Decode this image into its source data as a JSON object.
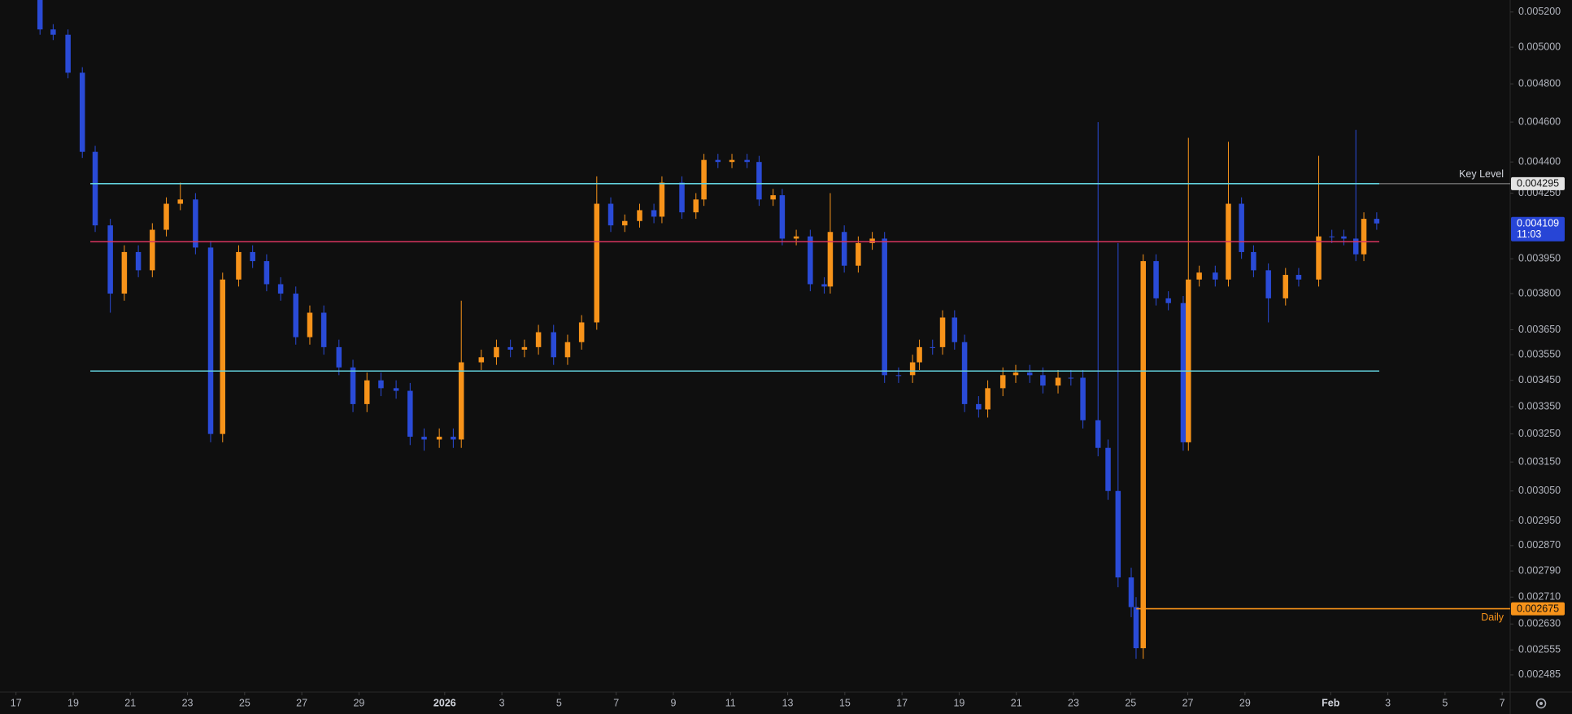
{
  "chart_data": {
    "type": "candlestick",
    "log_scale": true,
    "up_color": "#f7931a",
    "down_color": "#2a4bd7",
    "xlim": [
      -0.56,
      52.28
    ],
    "ylim": [
      0.002438,
      0.00527
    ],
    "xticks": [
      {
        "value": 0,
        "label": "17"
      },
      {
        "value": 2,
        "label": "19"
      },
      {
        "value": 4,
        "label": "21"
      },
      {
        "value": 6,
        "label": "23"
      },
      {
        "value": 8,
        "label": "25"
      },
      {
        "value": 10,
        "label": "27"
      },
      {
        "value": 12,
        "label": "29"
      },
      {
        "value": 15,
        "label": "2026",
        "bold": true
      },
      {
        "value": 17,
        "label": "3"
      },
      {
        "value": 19,
        "label": "5"
      },
      {
        "value": 21,
        "label": "7"
      },
      {
        "value": 23,
        "label": "9"
      },
      {
        "value": 25,
        "label": "11"
      },
      {
        "value": 27,
        "label": "13"
      },
      {
        "value": 29,
        "label": "15"
      },
      {
        "value": 31,
        "label": "17"
      },
      {
        "value": 33,
        "label": "19"
      },
      {
        "value": 35,
        "label": "21"
      },
      {
        "value": 37,
        "label": "23"
      },
      {
        "value": 39,
        "label": "25"
      },
      {
        "value": 41,
        "label": "27"
      },
      {
        "value": 43,
        "label": "29"
      },
      {
        "value": 46,
        "label": "Feb",
        "bold": true
      },
      {
        "value": 48,
        "label": "3"
      },
      {
        "value": 50,
        "label": "5"
      },
      {
        "value": 52,
        "label": "7"
      }
    ],
    "yticks": [
      {
        "value": 0.0052,
        "label": "0.005200"
      },
      {
        "value": 0.005,
        "label": "0.005000"
      },
      {
        "value": 0.0048,
        "label": "0.004800"
      },
      {
        "value": 0.0046,
        "label": "0.004600"
      },
      {
        "value": 0.0044,
        "label": "0.004400"
      },
      {
        "value": 0.00425,
        "label": "0.004250"
      },
      {
        "value": 0.00395,
        "label": "0.003950"
      },
      {
        "value": 0.0038,
        "label": "0.003800"
      },
      {
        "value": 0.00365,
        "label": "0.003650"
      },
      {
        "value": 0.00355,
        "label": "0.003550"
      },
      {
        "value": 0.00345,
        "label": "0.003450"
      },
      {
        "value": 0.00335,
        "label": "0.003350"
      },
      {
        "value": 0.00325,
        "label": "0.003250"
      },
      {
        "value": 0.00315,
        "label": "0.003150"
      },
      {
        "value": 0.00305,
        "label": "0.003050"
      },
      {
        "value": 0.00295,
        "label": "0.002950"
      },
      {
        "value": 0.00287,
        "label": "0.002870"
      },
      {
        "value": 0.00279,
        "label": "0.002790"
      },
      {
        "value": 0.00271,
        "label": "0.002710"
      },
      {
        "value": 0.00263,
        "label": "0.002630"
      },
      0.002555,
      0.002485
    ],
    "candles": {
      "x": [
        0.84,
        1.3,
        1.82,
        2.32,
        2.77,
        3.3,
        3.79,
        4.28,
        4.77,
        5.26,
        5.75,
        6.28,
        6.81,
        7.23,
        7.79,
        8.28,
        8.77,
        9.26,
        9.79,
        10.28,
        10.77,
        11.3,
        11.79,
        12.28,
        12.77,
        13.3,
        13.79,
        14.28,
        14.81,
        15.3,
        15.58,
        16.28,
        16.81,
        17.3,
        17.79,
        18.28,
        18.81,
        19.3,
        19.79,
        20.32,
        20.81,
        21.3,
        21.82,
        22.32,
        22.6,
        23.3,
        23.79,
        24.07,
        24.56,
        25.05,
        25.58,
        26,
        26.49,
        26.81,
        27.3,
        27.79,
        28.28,
        28.49,
        28.98,
        29.47,
        29.96,
        30.39,
        30.88,
        31.37,
        31.61,
        32.07,
        32.42,
        32.84,
        33.19,
        33.68,
        34,
        34.53,
        34.98,
        35.47,
        35.93,
        36.46,
        36.91,
        37.33,
        37.86,
        38.21,
        38.56,
        39.02,
        39.19,
        39.44,
        39.89,
        40.32,
        40.84,
        41.02,
        41.4,
        41.96,
        42.42,
        42.88,
        43.3,
        43.82,
        44.42,
        44.88,
        45.58,
        46.04,
        46.46,
        46.88,
        47.16,
        47.61
      ],
      "open": [
        0.00527,
        0.0051,
        0.00507,
        0.00486,
        0.00445,
        0.0041,
        0.0038,
        0.00398,
        0.0039,
        0.00408,
        0.0042,
        0.00422,
        0.004,
        0.00325,
        0.00386,
        0.00398,
        0.00394,
        0.00384,
        0.0038,
        0.00362,
        0.00372,
        0.00358,
        0.0035,
        0.00336,
        0.00345,
        0.00342,
        0.00341,
        0.00324,
        0.00323,
        0.00324,
        0.00323,
        0.00352,
        0.00354,
        0.00358,
        0.00357,
        0.00358,
        0.00364,
        0.00354,
        0.0036,
        0.00368,
        0.0042,
        0.0041,
        0.00412,
        0.00417,
        0.00414,
        0.0043,
        0.00416,
        0.00422,
        0.00441,
        0.0044,
        0.00441,
        0.0044,
        0.00422,
        0.00424,
        0.00404,
        0.00405,
        0.00384,
        0.00383,
        0.00407,
        0.00392,
        0.00402,
        0.00404,
        0.00347,
        0.00347,
        0.00352,
        0.00358,
        0.00358,
        0.0037,
        0.0036,
        0.00336,
        0.00334,
        0.00342,
        0.00347,
        0.00348,
        0.00347,
        0.00343,
        0.00346,
        0.00346,
        0.0033,
        0.0032,
        0.00305,
        0.00277,
        0.00268,
        0.00256,
        0.00394,
        0.00378,
        0.00376,
        0.00322,
        0.00386,
        0.00389,
        0.00386,
        0.0042,
        0.00398,
        0.0039,
        0.00378,
        0.00388,
        0.00386,
        0.00405,
        0.00405,
        0.00404,
        0.00397,
        0.00413
      ],
      "high": [
        0.0053,
        0.00513,
        0.0051,
        0.00489,
        0.00448,
        0.00413,
        0.00401,
        0.00401,
        0.00411,
        0.00423,
        0.0043,
        0.00425,
        0.00403,
        0.00389,
        0.00401,
        0.00401,
        0.00397,
        0.00387,
        0.00383,
        0.00375,
        0.00375,
        0.00361,
        0.00353,
        0.00348,
        0.00348,
        0.00345,
        0.00344,
        0.00327,
        0.00327,
        0.00327,
        0.00377,
        0.00357,
        0.00361,
        0.00361,
        0.00361,
        0.00367,
        0.00367,
        0.00363,
        0.00371,
        0.00433,
        0.00423,
        0.00415,
        0.0042,
        0.0042,
        0.00433,
        0.00433,
        0.00425,
        0.00444,
        0.00444,
        0.00444,
        0.00444,
        0.00443,
        0.00427,
        0.00427,
        0.00408,
        0.00408,
        0.00387,
        0.00425,
        0.0041,
        0.00405,
        0.00407,
        0.00407,
        0.0035,
        0.00355,
        0.00361,
        0.00361,
        0.00373,
        0.00373,
        0.00363,
        0.00339,
        0.00345,
        0.0035,
        0.00351,
        0.00351,
        0.0035,
        0.00349,
        0.00349,
        0.00349,
        0.0046,
        0.00323,
        0.00402,
        0.0028,
        0.00271,
        0.00397,
        0.00397,
        0.00381,
        0.00379,
        0.00452,
        0.00392,
        0.00392,
        0.0045,
        0.00423,
        0.00401,
        0.00393,
        0.00391,
        0.00391,
        0.00443,
        0.00408,
        0.00408,
        0.00456,
        0.00416,
        0.00416
      ],
      "low": [
        0.00507,
        0.00504,
        0.00483,
        0.00442,
        0.00407,
        0.00372,
        0.00377,
        0.00387,
        0.00387,
        0.00405,
        0.00417,
        0.00397,
        0.00322,
        0.00322,
        0.00383,
        0.00391,
        0.00381,
        0.00377,
        0.00359,
        0.00359,
        0.00355,
        0.00347,
        0.00333,
        0.00333,
        0.00339,
        0.00338,
        0.00321,
        0.00319,
        0.0032,
        0.0032,
        0.0032,
        0.00349,
        0.00351,
        0.00354,
        0.00354,
        0.00355,
        0.00351,
        0.00351,
        0.00357,
        0.00365,
        0.00407,
        0.00407,
        0.00409,
        0.00411,
        0.00411,
        0.00413,
        0.00413,
        0.00419,
        0.00437,
        0.00437,
        0.00437,
        0.00419,
        0.00419,
        0.00401,
        0.00401,
        0.00381,
        0.0038,
        0.0038,
        0.00389,
        0.00389,
        0.00399,
        0.00344,
        0.00344,
        0.00344,
        0.00349,
        0.00355,
        0.00355,
        0.00357,
        0.00333,
        0.00331,
        0.00331,
        0.00339,
        0.00344,
        0.00344,
        0.0034,
        0.0034,
        0.00343,
        0.00327,
        0.00317,
        0.00302,
        0.00274,
        0.00265,
        0.00253,
        0.00253,
        0.00375,
        0.00373,
        0.00319,
        0.00319,
        0.00383,
        0.00383,
        0.00383,
        0.00395,
        0.00387,
        0.00368,
        0.00375,
        0.00383,
        0.00383,
        0.00402,
        0.00401,
        0.00394,
        0.00394,
        0.00408
      ],
      "close": [
        0.0051,
        0.00507,
        0.00486,
        0.00445,
        0.0041,
        0.0038,
        0.00398,
        0.0039,
        0.00408,
        0.0042,
        0.00422,
        0.004,
        0.00325,
        0.00386,
        0.00398,
        0.00394,
        0.00384,
        0.0038,
        0.00362,
        0.00372,
        0.00358,
        0.0035,
        0.00336,
        0.00345,
        0.00342,
        0.00341,
        0.00324,
        0.00323,
        0.00324,
        0.00323,
        0.00352,
        0.00354,
        0.00358,
        0.00357,
        0.00358,
        0.00364,
        0.00354,
        0.0036,
        0.00368,
        0.0042,
        0.0041,
        0.00412,
        0.00417,
        0.00414,
        0.0043,
        0.00416,
        0.00422,
        0.00441,
        0.0044,
        0.00441,
        0.0044,
        0.00422,
        0.00424,
        0.00404,
        0.00405,
        0.00384,
        0.00383,
        0.00407,
        0.00392,
        0.00402,
        0.00404,
        0.00347,
        0.00347,
        0.00352,
        0.00358,
        0.00358,
        0.0037,
        0.0036,
        0.00336,
        0.00334,
        0.00342,
        0.00347,
        0.00348,
        0.00347,
        0.00343,
        0.00346,
        0.00346,
        0.0033,
        0.0032,
        0.00305,
        0.00277,
        0.00268,
        0.00256,
        0.00394,
        0.00378,
        0.00376,
        0.00322,
        0.00386,
        0.00389,
        0.00386,
        0.0042,
        0.00398,
        0.0039,
        0.00378,
        0.00388,
        0.00386,
        0.00405,
        0.00405,
        0.00404,
        0.00397,
        0.00413,
        0.004109
      ]
    },
    "levels": [
      {
        "name": "Key Level",
        "value": 0.004295,
        "color": "#62d2de",
        "from": 2.6,
        "to": 47.7,
        "tag_color": "#e4e4e4"
      },
      {
        "value": 0.004026,
        "color": "#d9345f",
        "from": 2.6,
        "to": 47.7
      },
      {
        "value": 0.003486,
        "color": "#62d2de",
        "from": 2.6,
        "to": 47.7
      },
      {
        "name": "Daily",
        "value": 0.002675,
        "color": "#f7931a",
        "from": 39.2,
        "to": 52.28,
        "tag_color": "#f7931a"
      }
    ],
    "last_price": {
      "value": 0.004109,
      "countdown": "11:03",
      "color": "#2745d6"
    }
  }
}
